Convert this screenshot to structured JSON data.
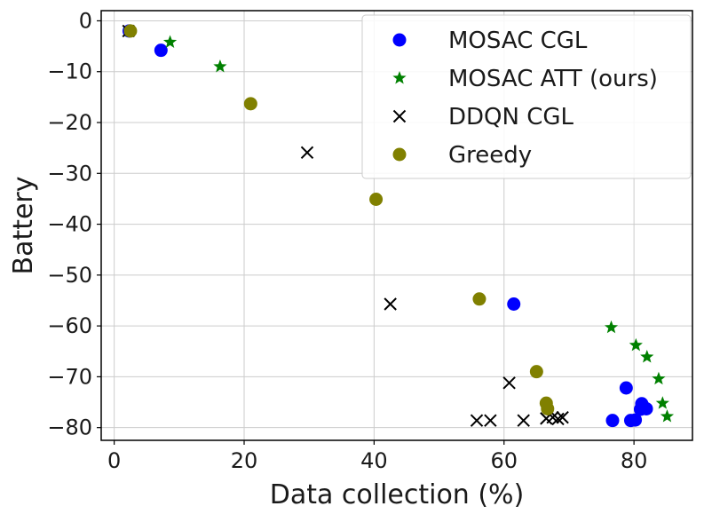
{
  "chart_data": {
    "type": "scatter",
    "title": "",
    "xlabel": "Data collection (%)",
    "ylabel": "Battery",
    "xlim": [
      -2,
      89
    ],
    "ylim": [
      -82.5,
      2
    ],
    "xticks": [
      0,
      20,
      40,
      60,
      80
    ],
    "yticks": [
      0,
      -10,
      -20,
      -30,
      -40,
      -50,
      -60,
      -70,
      -80
    ],
    "grid": true,
    "legend_position": "top-right",
    "series": [
      {
        "name": "MOSAC CGL",
        "marker": "circle",
        "color": "#0000ff",
        "points": [
          [
            2.3,
            -2
          ],
          [
            7.2,
            -5.8
          ],
          [
            61.5,
            -55.7
          ],
          [
            76.7,
            -78.6
          ],
          [
            78.8,
            -72.2
          ],
          [
            79.5,
            -78.6
          ],
          [
            80.2,
            -78.5
          ],
          [
            81.0,
            -76.4
          ],
          [
            81.2,
            -75.3
          ],
          [
            81.9,
            -76.3
          ]
        ]
      },
      {
        "name": "MOSAC ATT (ours)",
        "marker": "star",
        "color": "#008000",
        "points": [
          [
            2.4,
            -2
          ],
          [
            8.6,
            -4.2
          ],
          [
            16.3,
            -9.0
          ],
          [
            76.5,
            -60.3
          ],
          [
            80.3,
            -63.8
          ],
          [
            82.0,
            -66.1
          ],
          [
            83.8,
            -70.4
          ],
          [
            84.4,
            -75.2
          ],
          [
            85.1,
            -77.8
          ]
        ]
      },
      {
        "name": "DDQN CGL",
        "marker": "x",
        "color": "#000000",
        "points": [
          [
            2.2,
            -2
          ],
          [
            29.7,
            -25.9
          ],
          [
            42.5,
            -55.7
          ],
          [
            55.8,
            -78.6
          ],
          [
            57.9,
            -78.6
          ],
          [
            60.8,
            -71.2
          ],
          [
            63.0,
            -78.6
          ],
          [
            66.5,
            -78.2
          ],
          [
            67.5,
            -78.0
          ],
          [
            68.3,
            -78.3
          ],
          [
            69.0,
            -78.0
          ]
        ]
      },
      {
        "name": "Greedy",
        "marker": "circle",
        "color": "#808000",
        "points": [
          [
            2.5,
            -2
          ],
          [
            21.0,
            -16.3
          ],
          [
            40.3,
            -35.1
          ],
          [
            56.2,
            -54.7
          ],
          [
            65.0,
            -69.0
          ],
          [
            66.5,
            -75.2
          ],
          [
            66.7,
            -76.3
          ]
        ]
      }
    ]
  }
}
